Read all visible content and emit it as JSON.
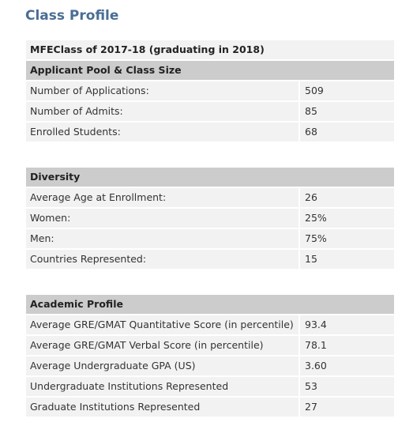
{
  "title": "Class Profile",
  "table_title": "MFEClass of 2017-18 (graduating in 2018)",
  "sections": [
    {
      "heading": "Applicant Pool & Class Size",
      "rows": [
        {
          "label": "Number of Applications:",
          "value": "509"
        },
        {
          "label": "Number of Admits:",
          "value": "85"
        },
        {
          "label": "Enrolled Students:",
          "value": "68"
        }
      ]
    },
    {
      "heading": "Diversity",
      "rows": [
        {
          "label": "Average Age at Enrollment:",
          "value": "26"
        },
        {
          "label": "Women:",
          "value": "25%"
        },
        {
          "label": "Men:",
          "value": "75%"
        },
        {
          "label": "Countries Represented:",
          "value": "15"
        }
      ]
    },
    {
      "heading": "Academic Profile",
      "rows": [
        {
          "label": "Average GRE/GMAT Quantitative Score (in percentile)",
          "value": "93.4"
        },
        {
          "label": "Average GRE/GMAT Verbal Score (in percentile)",
          "value": "78.1"
        },
        {
          "label": "Average Undergraduate GPA (US)",
          "value": "3.60"
        },
        {
          "label": "Undergraduate Institutions Represented",
          "value": "53"
        },
        {
          "label": "Graduate Institutions Represented",
          "value": "27"
        }
      ]
    }
  ]
}
